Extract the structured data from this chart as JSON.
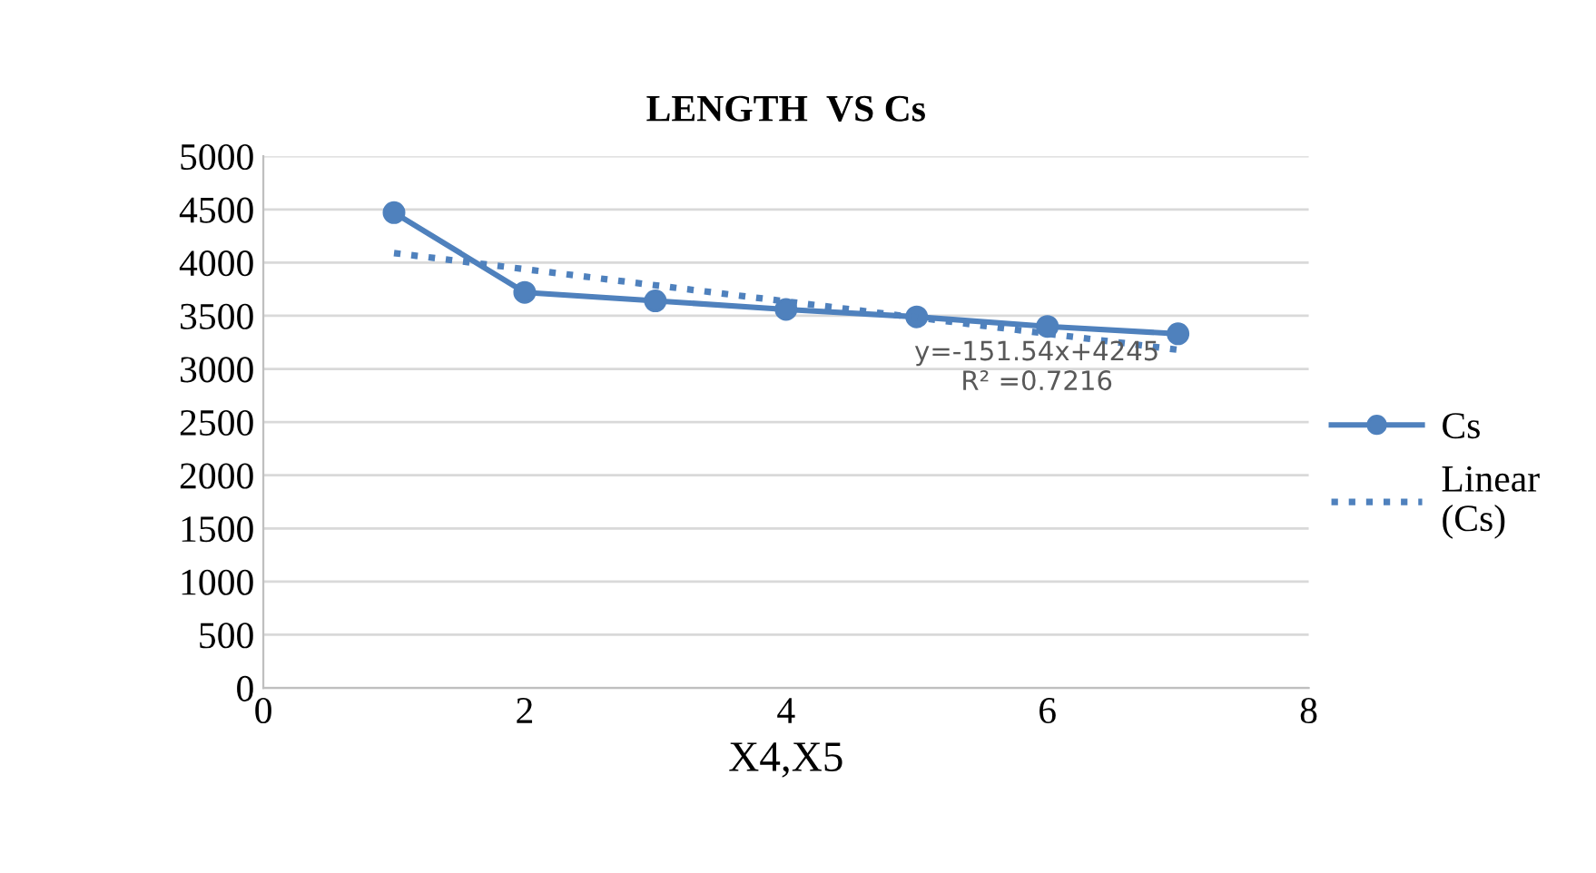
{
  "chart_data": {
    "type": "line",
    "title": "LENGTH  VS Cs",
    "xlabel": "X4,X5",
    "x": [
      1,
      2,
      3,
      4,
      5,
      6,
      7
    ],
    "series": [
      {
        "name": "Cs",
        "color": "#4f81bd",
        "values": [
          4470,
          3720,
          3640,
          3560,
          3490,
          3400,
          3330
        ],
        "marker": "circle",
        "line_style": "solid"
      },
      {
        "name": "Linear (Cs)",
        "color": "#4f81bd",
        "x": [
          1,
          7
        ],
        "values": [
          4090,
          3180
        ],
        "marker": "none",
        "line_style": "dotted"
      }
    ],
    "annotations": [
      "y=-151.54x+4245\nR² =0.7216"
    ],
    "xlim": [
      0,
      8
    ],
    "xticks": [
      0,
      2,
      4,
      6,
      8
    ],
    "ylim": [
      0,
      5000
    ],
    "yticks": [
      0,
      500,
      1000,
      1500,
      2000,
      2500,
      3000,
      3500,
      4000,
      4500,
      5000
    ],
    "grid": "y",
    "legend": "right"
  }
}
